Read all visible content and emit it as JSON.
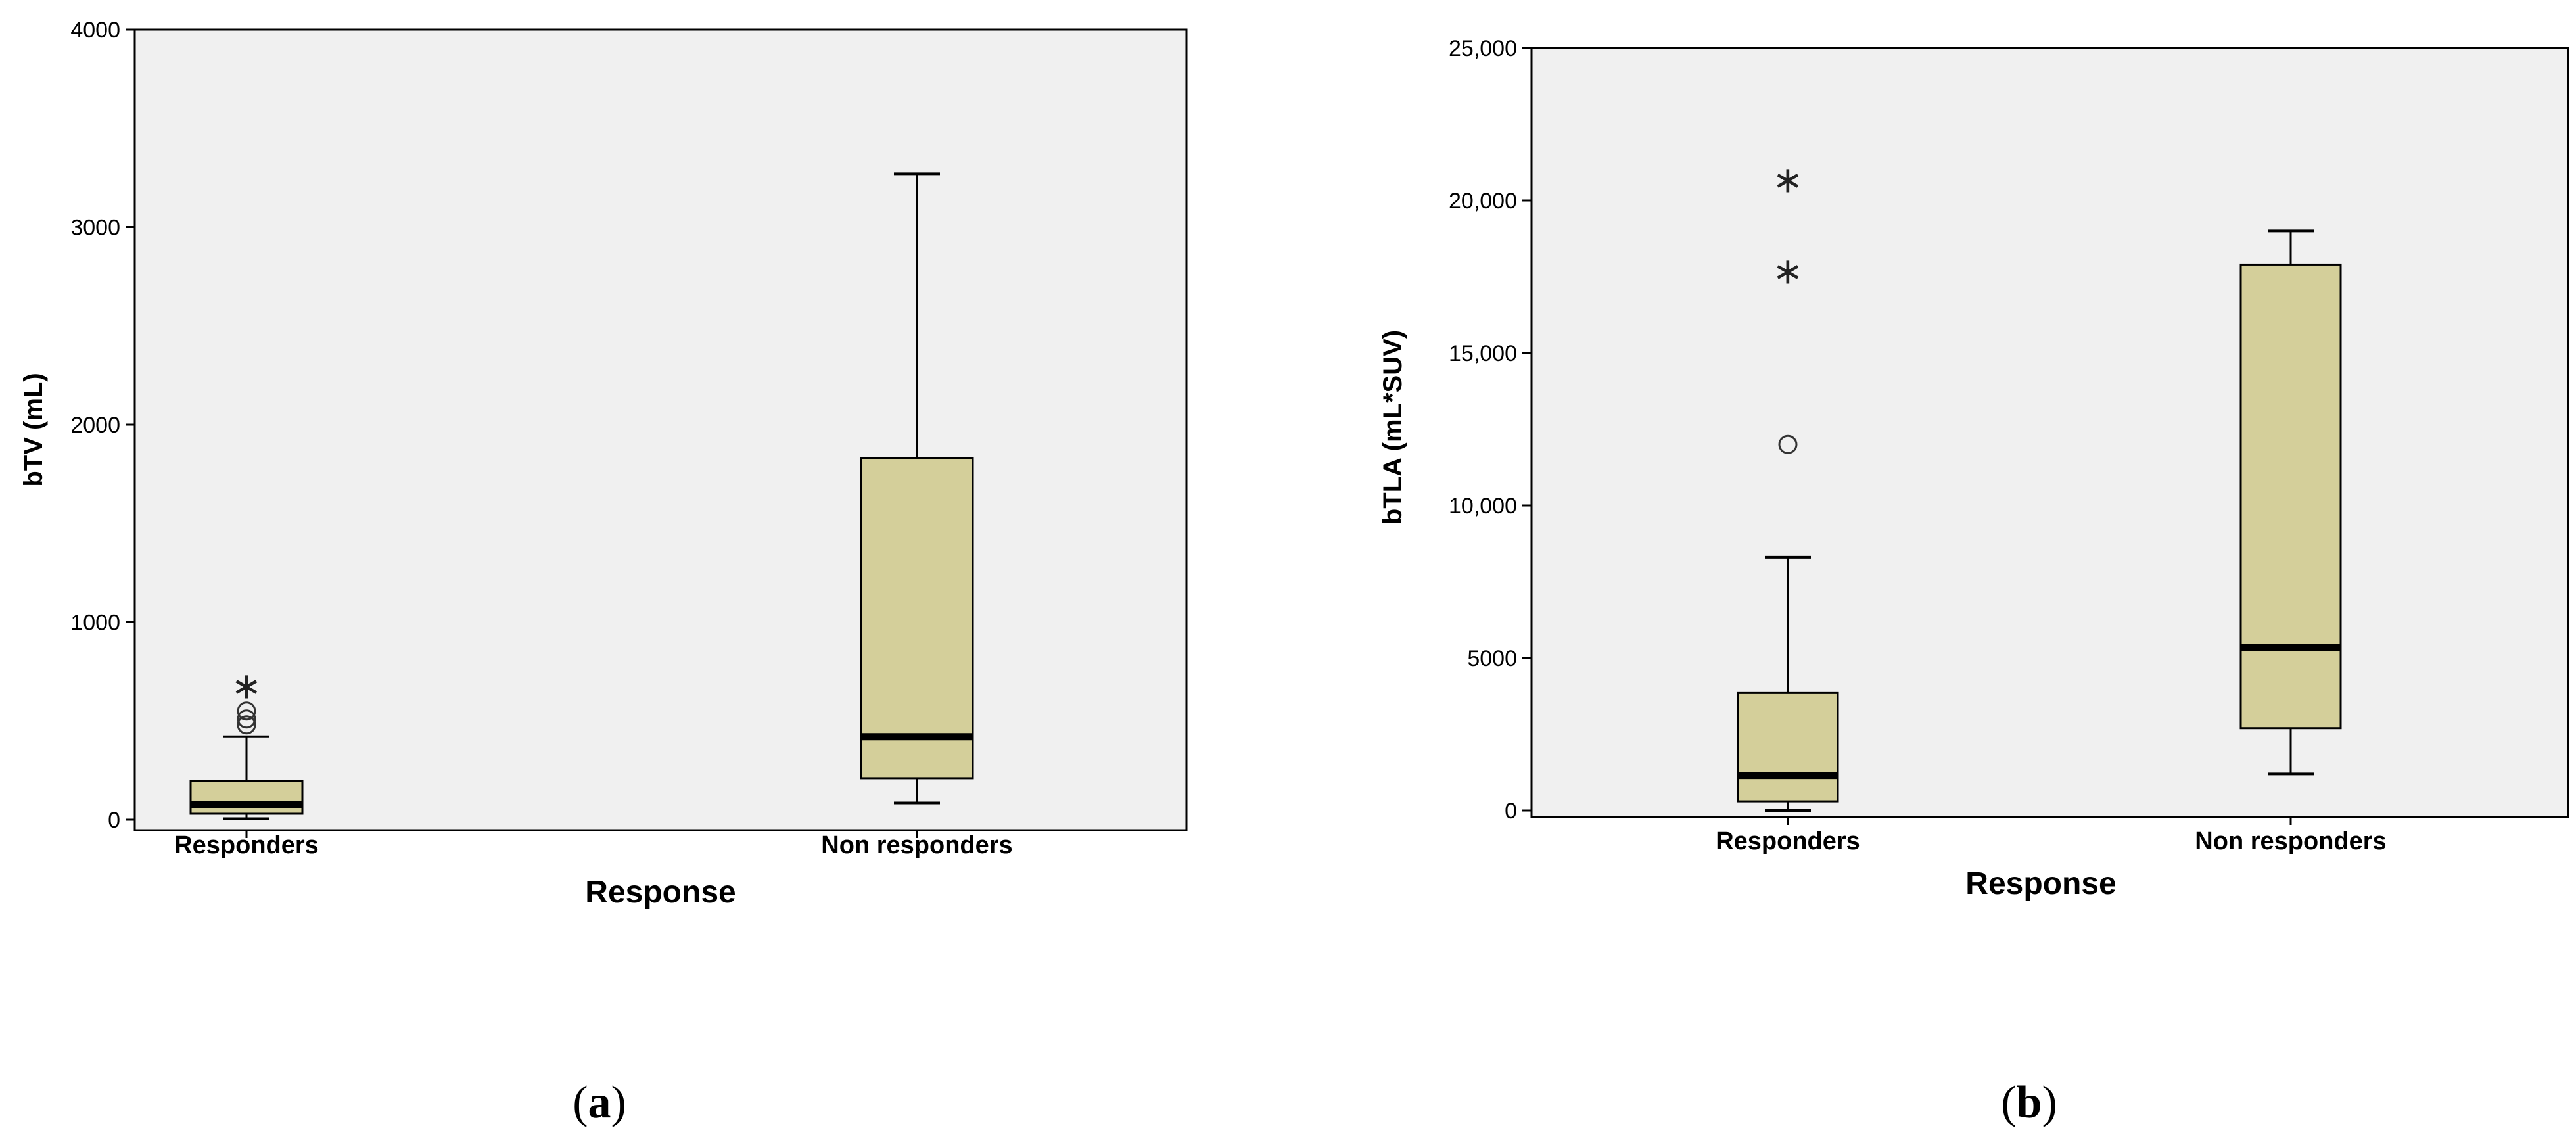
{
  "chart_data": [
    {
      "type": "box",
      "panel_label": {
        "open": "(",
        "letter": "a",
        "close": ")"
      },
      "xlabel": "Response",
      "ylabel": "bTV (mL)",
      "ylim": [
        0,
        4000
      ],
      "yticks": [
        0,
        1000,
        2000,
        3000,
        4000
      ],
      "ytick_labels": [
        "0",
        "1000",
        "2000",
        "3000",
        "4000"
      ],
      "grid": false,
      "box_color": "#d4cf9a",
      "categories": [
        "Responders",
        "Non responders"
      ],
      "boxes": [
        {
          "category": "Responders",
          "whisker_low": 5,
          "q1": 30,
          "median": 75,
          "q3": 195,
          "whisker_high": 420,
          "outliers": [
            480,
            510,
            550
          ],
          "extremes": [
            680
          ]
        },
        {
          "category": "Non responders",
          "whisker_low": 85,
          "q1": 210,
          "median": 420,
          "q3": 1830,
          "whisker_high": 3270,
          "outliers": [],
          "extremes": []
        }
      ]
    },
    {
      "type": "box",
      "panel_label": {
        "open": "(",
        "letter": "b",
        "close": ")"
      },
      "xlabel": "Response",
      "ylabel": "bTLA (mL*SUV)",
      "ylim": [
        0,
        25000
      ],
      "yticks": [
        0,
        5000,
        10000,
        15000,
        20000,
        25000
      ],
      "ytick_labels": [
        "0",
        "5000",
        "10,000",
        "15,000",
        "20,000",
        "25,000"
      ],
      "grid": false,
      "box_color": "#d4cf9a",
      "categories": [
        "Responders",
        "Non responders"
      ],
      "boxes": [
        {
          "category": "Responders",
          "whisker_low": 0,
          "q1": 300,
          "median": 1150,
          "q3": 3850,
          "whisker_high": 8300,
          "outliers": [
            12000
          ],
          "extremes": [
            17700,
            20700
          ]
        },
        {
          "category": "Non responders",
          "whisker_low": 1200,
          "q1": 2700,
          "median": 5350,
          "q3": 17900,
          "whisker_high": 19000,
          "outliers": [],
          "extremes": []
        }
      ]
    }
  ]
}
